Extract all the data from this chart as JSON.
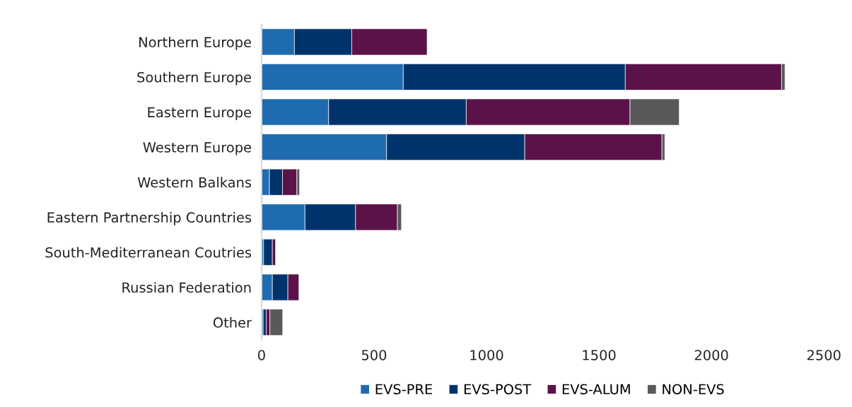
{
  "chart_data": {
    "type": "bar",
    "orientation": "horizontal",
    "stacked": true,
    "categories": [
      "Northern Europe",
      "Southern Europe",
      "Eastern Europe",
      "Western Europe",
      "Western Balkans",
      "Eastern Partnership Countries",
      "South-Mediterranean Coutries",
      "Russian Federation",
      "Other"
    ],
    "series": [
      {
        "name": "EVS-PRE",
        "color": "#1f6bb0",
        "values": [
          146,
          630,
          298,
          556,
          35,
          193,
          9,
          48,
          7
        ]
      },
      {
        "name": "EVS-POST",
        "color": "#00336b",
        "values": [
          255,
          987,
          612,
          614,
          58,
          225,
          39,
          69,
          14
        ]
      },
      {
        "name": "EVS-ALUM",
        "color": "#5b1249",
        "values": [
          335,
          695,
          728,
          610,
          64,
          186,
          14,
          49,
          16
        ]
      },
      {
        "name": "NON-EVS",
        "color": "#595959",
        "values": [
          null,
          15,
          219,
          13,
          12,
          18,
          null,
          null,
          57
        ]
      }
    ],
    "xlim": [
      0,
      2500
    ],
    "xticks": [
      0,
      500,
      1000,
      1500,
      2000,
      2500
    ],
    "grid": false,
    "legend": "bottom"
  }
}
